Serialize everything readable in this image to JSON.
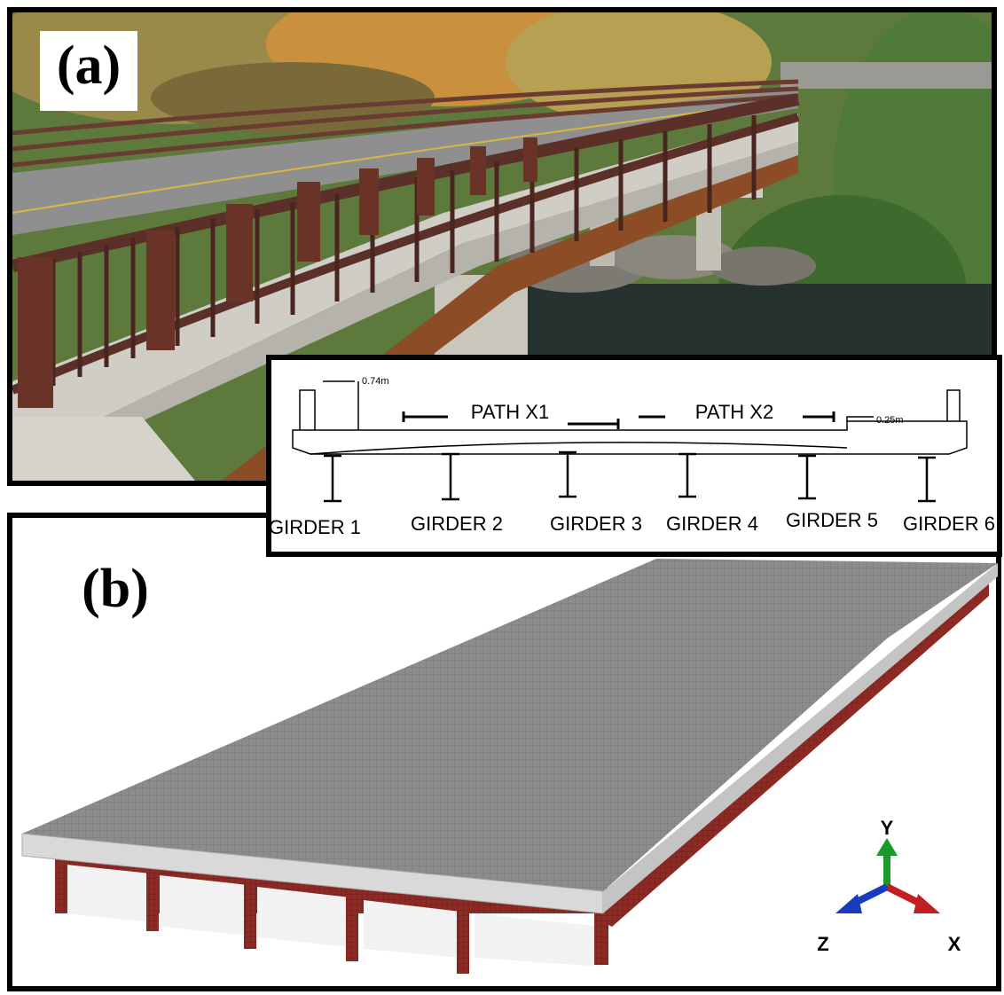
{
  "panel_a": {
    "label": "(a)"
  },
  "cross_section": {
    "dimensions": [
      "0.74m",
      "0.25m"
    ],
    "paths": [
      "PATH X1",
      "PATH X2"
    ],
    "girders": [
      "GIRDER 1",
      "GIRDER 2",
      "GIRDER 3",
      "GIRDER 4",
      "GIRDER 5",
      "GIRDER 6"
    ]
  },
  "panel_b": {
    "label": "(b)",
    "axes": [
      "Y",
      "Z",
      "X"
    ]
  }
}
